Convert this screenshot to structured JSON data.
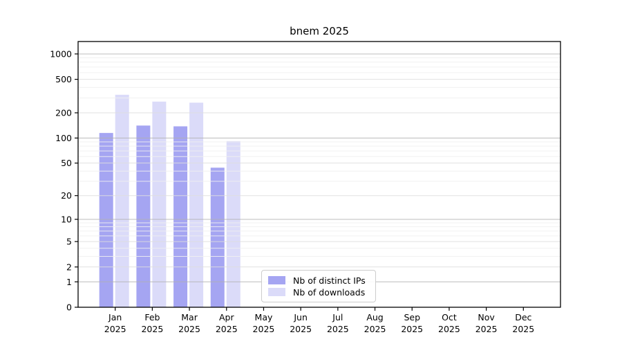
{
  "chart_data": {
    "type": "bar",
    "title": "bnem 2025",
    "xlabel": "",
    "ylabel": "",
    "y_scale": "log1p",
    "ylim": [
      0,
      1430
    ],
    "grid": "horizontal",
    "legend_position": "bottom-center-inside",
    "y_ticks": [
      0,
      1,
      2,
      5,
      10,
      20,
      50,
      100,
      200,
      500,
      1000
    ],
    "x_ticks": [
      {
        "month": "Jan",
        "year": "2025"
      },
      {
        "month": "Feb",
        "year": "2025"
      },
      {
        "month": "Mar",
        "year": "2025"
      },
      {
        "month": "Apr",
        "year": "2025"
      },
      {
        "month": "May",
        "year": "2025"
      },
      {
        "month": "Jun",
        "year": "2025"
      },
      {
        "month": "Jul",
        "year": "2025"
      },
      {
        "month": "Aug",
        "year": "2025"
      },
      {
        "month": "Sep",
        "year": "2025"
      },
      {
        "month": "Oct",
        "year": "2025"
      },
      {
        "month": "Nov",
        "year": "2025"
      },
      {
        "month": "Dec",
        "year": "2025"
      }
    ],
    "series": [
      {
        "name": "Nb of distinct IPs",
        "color": "#a5a5f2",
        "values": [
          115,
          141,
          138,
          44,
          null,
          null,
          null,
          null,
          null,
          null,
          null,
          null
        ]
      },
      {
        "name": "Nb of downloads",
        "color": "#dbdbf9",
        "values": [
          328,
          272,
          264,
          92,
          null,
          null,
          null,
          null,
          null,
          null,
          null,
          null
        ]
      }
    ],
    "colors": {
      "spine": "#000000",
      "grid_major": "#b0b0b0",
      "grid_labeled": "#dedede",
      "grid_minor": "#efefef",
      "tick_text": "#000000"
    }
  }
}
